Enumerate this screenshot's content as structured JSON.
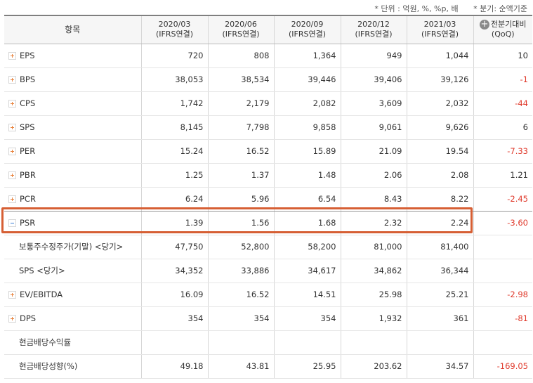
{
  "units": {
    "unit_note": "* 단위 : 억원, %, %p, 배",
    "basis_note": "* 분기: 순액기준"
  },
  "header": {
    "item": "항목",
    "periods": [
      {
        "date": "2020/03",
        "basis": "(IFRS연결)"
      },
      {
        "date": "2020/06",
        "basis": "(IFRS연결)"
      },
      {
        "date": "2020/09",
        "basis": "(IFRS연결)"
      },
      {
        "date": "2020/12",
        "basis": "(IFRS연결)"
      },
      {
        "date": "2021/03",
        "basis": "(IFRS연결)"
      }
    ],
    "qoq_line1": "전분기대비",
    "qoq_line2": "(QoQ)",
    "expand_icon": "plus-circle-icon"
  },
  "rows": [
    {
      "label": "EPS",
      "values": [
        "720",
        "808",
        "1,364",
        "949",
        "1,044"
      ],
      "qoq": "10"
    },
    {
      "label": "BPS",
      "values": [
        "38,053",
        "38,534",
        "39,446",
        "39,406",
        "39,126"
      ],
      "qoq": "-1"
    },
    {
      "label": "CPS",
      "values": [
        "1,742",
        "2,179",
        "2,082",
        "3,609",
        "2,032"
      ],
      "qoq": "-44"
    },
    {
      "label": "SPS",
      "values": [
        "8,145",
        "7,798",
        "9,858",
        "9,061",
        "9,626"
      ],
      "qoq": "6"
    },
    {
      "label": "PER",
      "values": [
        "15.24",
        "16.52",
        "15.89",
        "21.09",
        "19.54"
      ],
      "qoq": "-7.33"
    },
    {
      "label": "PBR",
      "values": [
        "1.25",
        "1.37",
        "1.48",
        "2.06",
        "2.08"
      ],
      "qoq": "1.21"
    },
    {
      "label": "PCR",
      "values": [
        "6.24",
        "5.96",
        "6.54",
        "8.43",
        "8.22"
      ],
      "qoq": "-2.45"
    },
    {
      "label": "PSR",
      "values": [
        "1.39",
        "1.56",
        "1.68",
        "2.32",
        "2.24"
      ],
      "qoq": "-3.60"
    },
    {
      "label": "보통주수정주가(기말) <당기>",
      "values": [
        "47,750",
        "52,800",
        "58,200",
        "81,000",
        "81,400"
      ],
      "qoq": ""
    },
    {
      "label": "SPS <당기>",
      "values": [
        "34,352",
        "33,886",
        "34,617",
        "34,862",
        "36,344"
      ],
      "qoq": ""
    },
    {
      "label": "EV/EBITDA",
      "values": [
        "16.09",
        "16.52",
        "14.51",
        "25.98",
        "25.21"
      ],
      "qoq": "-2.98"
    },
    {
      "label": "DPS",
      "values": [
        "354",
        "354",
        "354",
        "1,932",
        "361"
      ],
      "qoq": "-81"
    },
    {
      "label": "현금배당수익률",
      "values": [
        "",
        "",
        "",
        "",
        ""
      ],
      "qoq": ""
    },
    {
      "label": "현금배당성향(%)",
      "values": [
        "49.18",
        "43.81",
        "25.95",
        "203.62",
        "34.57"
      ],
      "qoq": "-169.05"
    }
  ],
  "colors": {
    "negative": "#e03b2d",
    "highlight_border": "#d65f34"
  }
}
